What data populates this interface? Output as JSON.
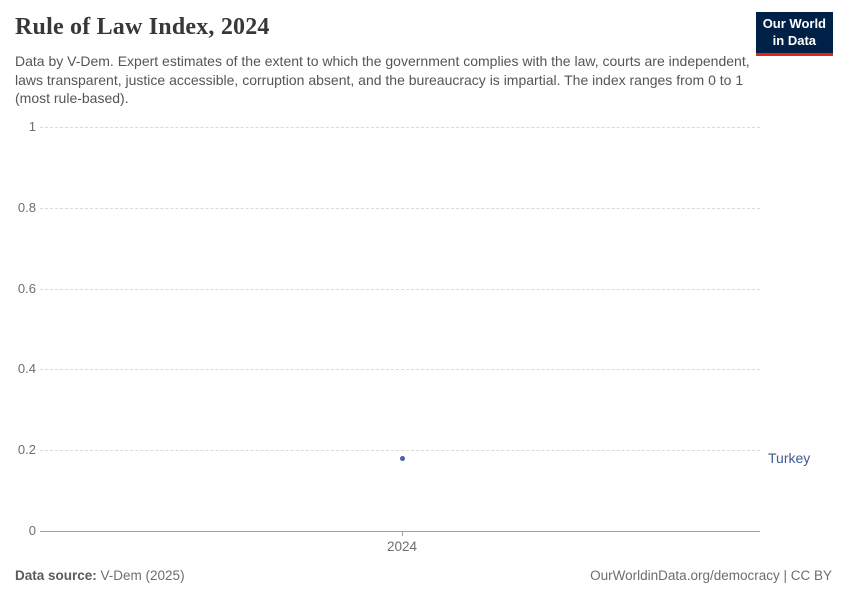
{
  "header": {
    "title": "Rule of Law Index, 2024",
    "subtitle": "Data by V-Dem. Expert estimates of the extent to which the government complies with the law, courts are independent, laws transparent, justice accessible, corruption absent, and the bureaucracy is impartial. The index ranges from 0 to 1 (most rule-based).",
    "logo": {
      "line1": "Our World",
      "line2": "in Data",
      "bg_color": "#002147",
      "accent_color": "#e0261c"
    }
  },
  "chart_data": {
    "type": "scatter",
    "title": "Rule of Law Index, 2024",
    "x": [
      2024
    ],
    "xticks": [
      "2024"
    ],
    "series": [
      {
        "name": "Turkey",
        "values": [
          0.18
        ],
        "color": "#4165a0",
        "label_color": "#3d5a96"
      }
    ],
    "ylim": [
      0,
      1
    ],
    "yticks": [
      0,
      0.2,
      0.4,
      0.6,
      0.8,
      1
    ],
    "xlabel": "",
    "ylabel": "",
    "grid": "horizontal-dashed",
    "legend_position": "entity-label-right"
  },
  "footer": {
    "source_label": "Data source:",
    "source_value": " V-Dem (2025)",
    "credit": "OurWorldinData.org/democracy | CC BY"
  }
}
